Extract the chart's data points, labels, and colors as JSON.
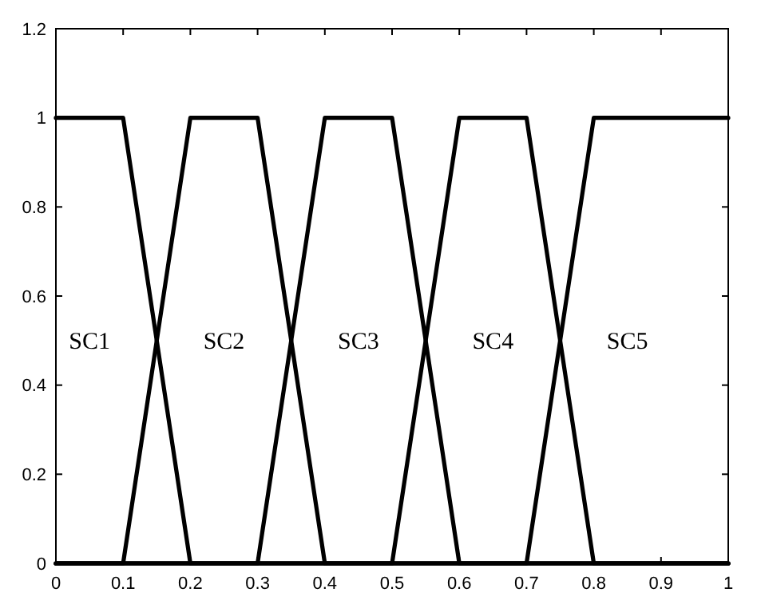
{
  "chart_data": {
    "type": "line",
    "xlim": [
      0,
      1
    ],
    "ylim": [
      0,
      1.2
    ],
    "xticks": [
      0,
      0.1,
      0.2,
      0.3,
      0.4,
      0.5,
      0.6,
      0.7,
      0.8,
      0.9,
      1
    ],
    "yticks": [
      0,
      0.2,
      0.4,
      0.6,
      0.8,
      1,
      1.2
    ],
    "grid": false,
    "legend": false,
    "marker": "none",
    "line_style": "solid",
    "series": [
      {
        "name": "SC1",
        "color": "#000000",
        "x": [
          0,
          0.1,
          0.2,
          1
        ],
        "values": [
          1,
          1,
          0,
          0
        ]
      },
      {
        "name": "SC2",
        "color": "#000000",
        "x": [
          0,
          0.1,
          0.2,
          0.3,
          0.4,
          1
        ],
        "values": [
          0,
          0,
          1,
          1,
          0,
          0
        ]
      },
      {
        "name": "SC3",
        "color": "#000000",
        "x": [
          0,
          0.3,
          0.4,
          0.5,
          0.6,
          1
        ],
        "values": [
          0,
          0,
          1,
          1,
          0,
          0
        ]
      },
      {
        "name": "SC4",
        "color": "#000000",
        "x": [
          0,
          0.5,
          0.6,
          0.7,
          0.8,
          1
        ],
        "values": [
          0,
          0,
          1,
          1,
          0,
          0
        ]
      },
      {
        "name": "SC5",
        "color": "#000000",
        "x": [
          0,
          0.7,
          0.8,
          1
        ],
        "values": [
          0,
          0,
          1,
          1
        ]
      }
    ]
  }
}
